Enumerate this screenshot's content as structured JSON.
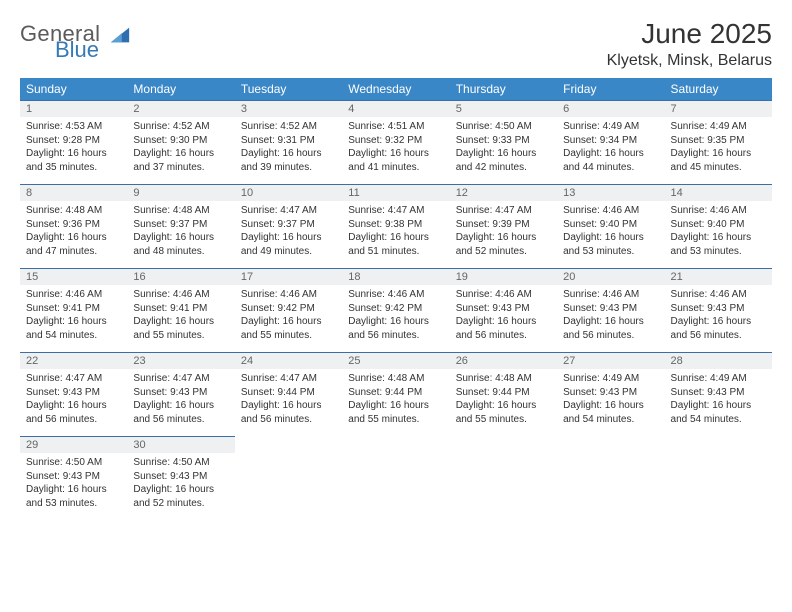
{
  "logo": {
    "text1": "General",
    "text2": "Blue"
  },
  "title": {
    "month": "June 2025",
    "location": "Klyetsk, Minsk, Belarus"
  },
  "calendar": {
    "header_bg": "#3a87c7",
    "header_fg": "#ffffff",
    "band_bg": "#eef0f1",
    "rule_color": "#3a6fa3",
    "weekdays": [
      "Sunday",
      "Monday",
      "Tuesday",
      "Wednesday",
      "Thursday",
      "Friday",
      "Saturday"
    ],
    "rows": [
      [
        {
          "day": "1",
          "sunrise": "Sunrise: 4:53 AM",
          "sunset": "Sunset: 9:28 PM",
          "day1": "Daylight: 16 hours",
          "day2": "and 35 minutes."
        },
        {
          "day": "2",
          "sunrise": "Sunrise: 4:52 AM",
          "sunset": "Sunset: 9:30 PM",
          "day1": "Daylight: 16 hours",
          "day2": "and 37 minutes."
        },
        {
          "day": "3",
          "sunrise": "Sunrise: 4:52 AM",
          "sunset": "Sunset: 9:31 PM",
          "day1": "Daylight: 16 hours",
          "day2": "and 39 minutes."
        },
        {
          "day": "4",
          "sunrise": "Sunrise: 4:51 AM",
          "sunset": "Sunset: 9:32 PM",
          "day1": "Daylight: 16 hours",
          "day2": "and 41 minutes."
        },
        {
          "day": "5",
          "sunrise": "Sunrise: 4:50 AM",
          "sunset": "Sunset: 9:33 PM",
          "day1": "Daylight: 16 hours",
          "day2": "and 42 minutes."
        },
        {
          "day": "6",
          "sunrise": "Sunrise: 4:49 AM",
          "sunset": "Sunset: 9:34 PM",
          "day1": "Daylight: 16 hours",
          "day2": "and 44 minutes."
        },
        {
          "day": "7",
          "sunrise": "Sunrise: 4:49 AM",
          "sunset": "Sunset: 9:35 PM",
          "day1": "Daylight: 16 hours",
          "day2": "and 45 minutes."
        }
      ],
      [
        {
          "day": "8",
          "sunrise": "Sunrise: 4:48 AM",
          "sunset": "Sunset: 9:36 PM",
          "day1": "Daylight: 16 hours",
          "day2": "and 47 minutes."
        },
        {
          "day": "9",
          "sunrise": "Sunrise: 4:48 AM",
          "sunset": "Sunset: 9:37 PM",
          "day1": "Daylight: 16 hours",
          "day2": "and 48 minutes."
        },
        {
          "day": "10",
          "sunrise": "Sunrise: 4:47 AM",
          "sunset": "Sunset: 9:37 PM",
          "day1": "Daylight: 16 hours",
          "day2": "and 49 minutes."
        },
        {
          "day": "11",
          "sunrise": "Sunrise: 4:47 AM",
          "sunset": "Sunset: 9:38 PM",
          "day1": "Daylight: 16 hours",
          "day2": "and 51 minutes."
        },
        {
          "day": "12",
          "sunrise": "Sunrise: 4:47 AM",
          "sunset": "Sunset: 9:39 PM",
          "day1": "Daylight: 16 hours",
          "day2": "and 52 minutes."
        },
        {
          "day": "13",
          "sunrise": "Sunrise: 4:46 AM",
          "sunset": "Sunset: 9:40 PM",
          "day1": "Daylight: 16 hours",
          "day2": "and 53 minutes."
        },
        {
          "day": "14",
          "sunrise": "Sunrise: 4:46 AM",
          "sunset": "Sunset: 9:40 PM",
          "day1": "Daylight: 16 hours",
          "day2": "and 53 minutes."
        }
      ],
      [
        {
          "day": "15",
          "sunrise": "Sunrise: 4:46 AM",
          "sunset": "Sunset: 9:41 PM",
          "day1": "Daylight: 16 hours",
          "day2": "and 54 minutes."
        },
        {
          "day": "16",
          "sunrise": "Sunrise: 4:46 AM",
          "sunset": "Sunset: 9:41 PM",
          "day1": "Daylight: 16 hours",
          "day2": "and 55 minutes."
        },
        {
          "day": "17",
          "sunrise": "Sunrise: 4:46 AM",
          "sunset": "Sunset: 9:42 PM",
          "day1": "Daylight: 16 hours",
          "day2": "and 55 minutes."
        },
        {
          "day": "18",
          "sunrise": "Sunrise: 4:46 AM",
          "sunset": "Sunset: 9:42 PM",
          "day1": "Daylight: 16 hours",
          "day2": "and 56 minutes."
        },
        {
          "day": "19",
          "sunrise": "Sunrise: 4:46 AM",
          "sunset": "Sunset: 9:43 PM",
          "day1": "Daylight: 16 hours",
          "day2": "and 56 minutes."
        },
        {
          "day": "20",
          "sunrise": "Sunrise: 4:46 AM",
          "sunset": "Sunset: 9:43 PM",
          "day1": "Daylight: 16 hours",
          "day2": "and 56 minutes."
        },
        {
          "day": "21",
          "sunrise": "Sunrise: 4:46 AM",
          "sunset": "Sunset: 9:43 PM",
          "day1": "Daylight: 16 hours",
          "day2": "and 56 minutes."
        }
      ],
      [
        {
          "day": "22",
          "sunrise": "Sunrise: 4:47 AM",
          "sunset": "Sunset: 9:43 PM",
          "day1": "Daylight: 16 hours",
          "day2": "and 56 minutes."
        },
        {
          "day": "23",
          "sunrise": "Sunrise: 4:47 AM",
          "sunset": "Sunset: 9:43 PM",
          "day1": "Daylight: 16 hours",
          "day2": "and 56 minutes."
        },
        {
          "day": "24",
          "sunrise": "Sunrise: 4:47 AM",
          "sunset": "Sunset: 9:44 PM",
          "day1": "Daylight: 16 hours",
          "day2": "and 56 minutes."
        },
        {
          "day": "25",
          "sunrise": "Sunrise: 4:48 AM",
          "sunset": "Sunset: 9:44 PM",
          "day1": "Daylight: 16 hours",
          "day2": "and 55 minutes."
        },
        {
          "day": "26",
          "sunrise": "Sunrise: 4:48 AM",
          "sunset": "Sunset: 9:44 PM",
          "day1": "Daylight: 16 hours",
          "day2": "and 55 minutes."
        },
        {
          "day": "27",
          "sunrise": "Sunrise: 4:49 AM",
          "sunset": "Sunset: 9:43 PM",
          "day1": "Daylight: 16 hours",
          "day2": "and 54 minutes."
        },
        {
          "day": "28",
          "sunrise": "Sunrise: 4:49 AM",
          "sunset": "Sunset: 9:43 PM",
          "day1": "Daylight: 16 hours",
          "day2": "and 54 minutes."
        }
      ],
      [
        {
          "day": "29",
          "sunrise": "Sunrise: 4:50 AM",
          "sunset": "Sunset: 9:43 PM",
          "day1": "Daylight: 16 hours",
          "day2": "and 53 minutes."
        },
        {
          "day": "30",
          "sunrise": "Sunrise: 4:50 AM",
          "sunset": "Sunset: 9:43 PM",
          "day1": "Daylight: 16 hours",
          "day2": "and 52 minutes."
        },
        {
          "day": "",
          "sunrise": "",
          "sunset": "",
          "day1": "",
          "day2": ""
        },
        {
          "day": "",
          "sunrise": "",
          "sunset": "",
          "day1": "",
          "day2": ""
        },
        {
          "day": "",
          "sunrise": "",
          "sunset": "",
          "day1": "",
          "day2": ""
        },
        {
          "day": "",
          "sunrise": "",
          "sunset": "",
          "day1": "",
          "day2": ""
        },
        {
          "day": "",
          "sunrise": "",
          "sunset": "",
          "day1": "",
          "day2": ""
        }
      ]
    ]
  }
}
